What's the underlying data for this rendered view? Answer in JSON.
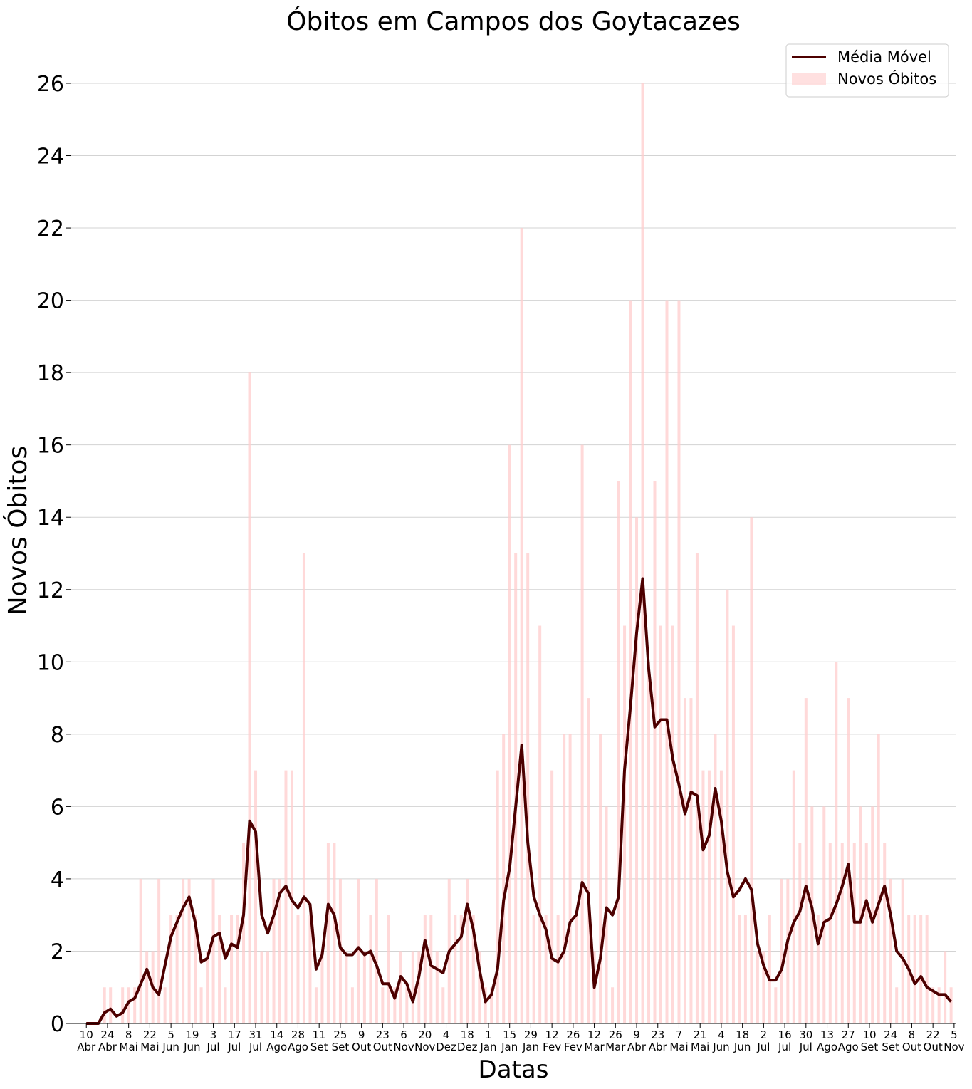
{
  "chart_data": {
    "type": "combo",
    "title": "Óbitos em Campos dos Goytacazes",
    "xlabel": "Datas",
    "ylabel": "Novos Óbitos",
    "legend": "upper right",
    "grid": true,
    "xlim": [
      -10,
      575
    ],
    "ylim": [
      0,
      27
    ],
    "yticks": [
      0,
      2,
      4,
      6,
      8,
      10,
      12,
      14,
      16,
      18,
      20,
      22,
      24,
      26
    ],
    "xticks": [
      {
        "value": 0,
        "label": "10 Abr"
      },
      {
        "value": 14,
        "label": "24 Abr"
      },
      {
        "value": 28,
        "label": "8 Mai"
      },
      {
        "value": 42,
        "label": "22 Mai"
      },
      {
        "value": 56,
        "label": "5 Jun"
      },
      {
        "value": 70,
        "label": "19 Jun"
      },
      {
        "value": 84,
        "label": "3 Jul"
      },
      {
        "value": 98,
        "label": "17 Jul"
      },
      {
        "value": 112,
        "label": "31 Jul"
      },
      {
        "value": 126,
        "label": "14 Ago"
      },
      {
        "value": 140,
        "label": "28 Ago"
      },
      {
        "value": 154,
        "label": "11 Set"
      },
      {
        "value": 168,
        "label": "25 Set"
      },
      {
        "value": 182,
        "label": "9 Out"
      },
      {
        "value": 196,
        "label": "23 Out"
      },
      {
        "value": 210,
        "label": "6 Nov"
      },
      {
        "value": 224,
        "label": "20 Nov"
      },
      {
        "value": 238,
        "label": "4 Dez"
      },
      {
        "value": 252,
        "label": "18 Dez"
      },
      {
        "value": 266,
        "label": "1 Jan"
      },
      {
        "value": 280,
        "label": "15 Jan"
      },
      {
        "value": 294,
        "label": "29 Jan"
      },
      {
        "value": 308,
        "label": "12 Fev"
      },
      {
        "value": 322,
        "label": "26 Fev"
      },
      {
        "value": 336,
        "label": "12 Mar"
      },
      {
        "value": 350,
        "label": "26 Mar"
      },
      {
        "value": 364,
        "label": "9 Abr"
      },
      {
        "value": 378,
        "label": "23 Abr"
      },
      {
        "value": 392,
        "label": "7 Mai"
      },
      {
        "value": 406,
        "label": "21 Mai"
      },
      {
        "value": 420,
        "label": "4 Jun"
      },
      {
        "value": 434,
        "label": "18 Jun"
      },
      {
        "value": 448,
        "label": "2 Jul"
      },
      {
        "value": 462,
        "label": "16 Jul"
      },
      {
        "value": 476,
        "label": "30 Jul"
      },
      {
        "value": 490,
        "label": "13 Ago"
      },
      {
        "value": 504,
        "label": "27 Ago"
      },
      {
        "value": 518,
        "label": "10 Set"
      },
      {
        "value": 532,
        "label": "24 Set"
      },
      {
        "value": 546,
        "label": "8 Out"
      },
      {
        "value": 560,
        "label": "22 Out"
      },
      {
        "value": 574,
        "label": "5 Nov"
      }
    ],
    "x": [
      0,
      4,
      8,
      12,
      16,
      20,
      24,
      28,
      32,
      36,
      40,
      44,
      48,
      52,
      56,
      60,
      64,
      68,
      72,
      76,
      80,
      84,
      88,
      92,
      96,
      100,
      104,
      108,
      112,
      116,
      120,
      124,
      128,
      132,
      136,
      140,
      144,
      148,
      152,
      156,
      160,
      164,
      168,
      172,
      176,
      180,
      184,
      188,
      192,
      196,
      200,
      204,
      208,
      212,
      216,
      220,
      224,
      228,
      232,
      236,
      240,
      244,
      248,
      252,
      256,
      260,
      264,
      268,
      272,
      276,
      280,
      284,
      288,
      292,
      296,
      300,
      304,
      308,
      312,
      316,
      320,
      324,
      328,
      332,
      336,
      340,
      344,
      348,
      352,
      356,
      360,
      364,
      368,
      372,
      376,
      380,
      384,
      388,
      392,
      396,
      400,
      404,
      408,
      412,
      416,
      420,
      424,
      428,
      432,
      436,
      440,
      444,
      448,
      452,
      456,
      460,
      464,
      468,
      472,
      476,
      480,
      484,
      488,
      492,
      496,
      500,
      504,
      508,
      512,
      516,
      520,
      524,
      528,
      532,
      536,
      540,
      544,
      548,
      552,
      556,
      560,
      564,
      568,
      572
    ],
    "series": [
      {
        "name": "Média Móvel",
        "type": "line",
        "color": "#4d0000",
        "values": [
          0,
          0,
          0,
          0.3,
          0.4,
          0.2,
          0.3,
          0.6,
          0.7,
          1.1,
          1.5,
          1.0,
          0.8,
          1.6,
          2.4,
          2.8,
          3.2,
          3.5,
          2.8,
          1.7,
          1.8,
          2.4,
          2.5,
          1.8,
          2.2,
          2.1,
          3.0,
          5.6,
          5.3,
          3.0,
          2.5,
          3.0,
          3.6,
          3.8,
          3.4,
          3.2,
          3.5,
          3.3,
          1.5,
          1.9,
          3.3,
          3.0,
          2.1,
          1.9,
          1.9,
          2.1,
          1.9,
          2.0,
          1.6,
          1.1,
          1.1,
          0.7,
          1.3,
          1.1,
          0.6,
          1.3,
          2.3,
          1.6,
          1.5,
          1.4,
          2.0,
          2.2,
          2.4,
          3.3,
          2.6,
          1.5,
          0.6,
          0.8,
          1.5,
          3.4,
          4.3,
          6.0,
          7.7,
          5.0,
          3.5,
          3.0,
          2.6,
          1.8,
          1.7,
          2.0,
          2.8,
          3.0,
          3.9,
          3.6,
          1.0,
          1.8,
          3.2,
          3.0,
          3.5,
          7.0,
          8.8,
          10.8,
          12.3,
          9.8,
          8.2,
          8.4,
          8.4,
          7.3,
          6.6,
          5.8,
          6.4,
          6.3,
          4.8,
          5.2,
          6.5,
          5.6,
          4.2,
          3.5,
          3.7,
          4.0,
          3.7,
          2.2,
          1.6,
          1.2,
          1.2,
          1.5,
          2.3,
          2.8,
          3.1,
          3.8,
          3.2,
          2.2,
          2.8,
          2.9,
          3.3,
          3.8,
          4.4,
          2.8,
          2.8,
          3.4,
          2.8,
          3.3,
          3.8,
          3.0,
          2.0,
          1.8,
          1.5,
          1.1,
          1.3,
          1.0,
          0.9,
          0.8,
          0.8,
          0.6
        ]
      },
      {
        "name": "Novos Óbitos",
        "type": "bar",
        "color": "#ffcccc",
        "values": [
          0,
          0,
          0,
          1,
          1,
          0,
          1,
          1,
          1,
          4,
          2,
          2,
          4,
          1,
          3,
          3,
          4,
          4,
          3,
          1,
          2,
          4,
          3,
          1,
          3,
          3,
          5,
          18,
          7,
          2,
          2,
          4,
          4,
          7,
          7,
          3,
          13,
          3,
          1,
          2,
          5,
          5,
          4,
          2,
          1,
          4,
          2,
          3,
          4,
          1,
          3,
          1,
          2,
          1,
          2,
          2,
          3,
          3,
          2,
          1,
          4,
          3,
          3,
          4,
          3,
          2,
          1,
          1,
          7,
          8,
          16,
          13,
          22,
          13,
          3,
          11,
          3,
          7,
          3,
          8,
          8,
          3,
          16,
          9,
          2,
          8,
          6,
          1,
          15,
          11,
          20,
          14,
          26,
          10,
          15,
          11,
          20,
          11,
          20,
          9,
          9,
          13,
          7,
          7,
          8,
          7,
          12,
          11,
          3,
          3,
          14,
          2,
          2,
          3,
          1,
          4,
          4,
          7,
          5,
          9,
          6,
          3,
          6,
          5,
          10,
          5,
          9,
          5,
          6,
          5,
          6,
          8,
          5,
          4,
          1,
          4,
          3,
          3,
          3,
          3,
          1,
          1,
          2,
          1
        ]
      }
    ]
  }
}
